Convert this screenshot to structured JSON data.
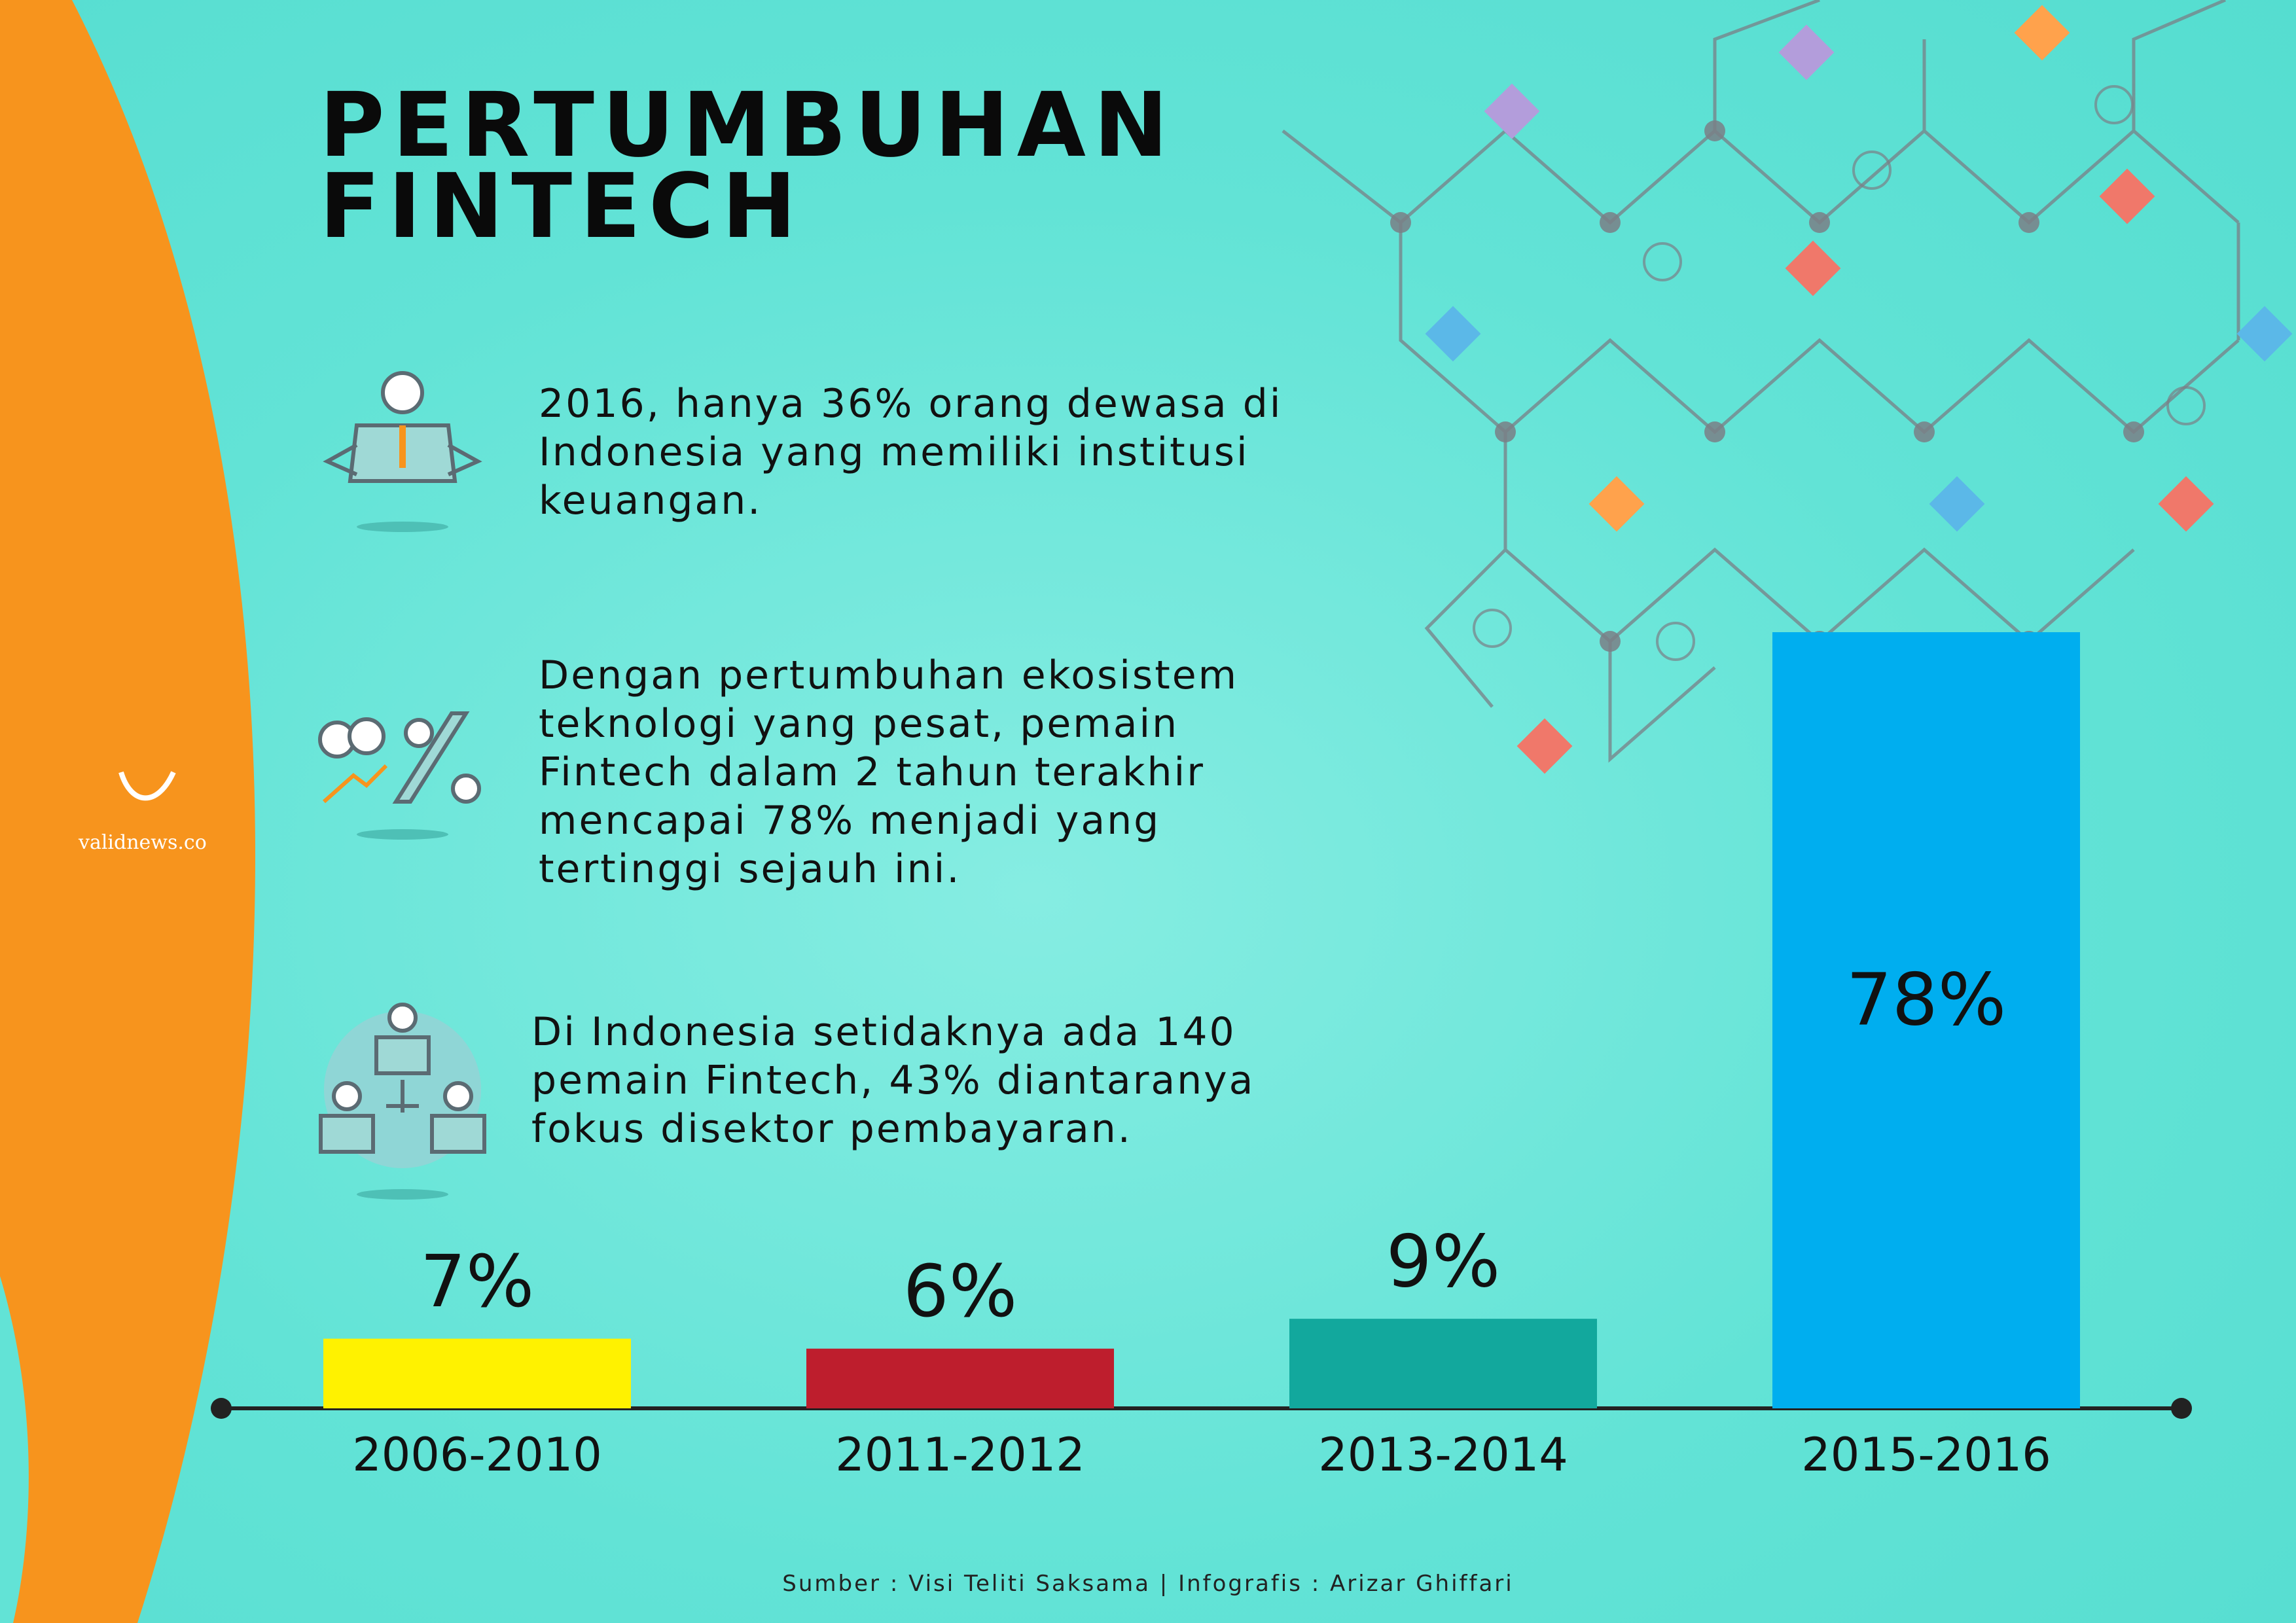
{
  "header": {
    "title": "PERTUMBUHAN FINTECH",
    "logo": "validnews.co"
  },
  "facts": [
    "2016, hanya 36% orang dewasa di Indonesia yang memiliki institusi keuangan.",
    "Dengan pertumbuhan ekosistem teknologi yang pesat, pemain Fintech dalam 2 tahun terakhir mencapai 78% menjadi yang tertinggi sejauh ini.",
    "Di Indonesia setidaknya ada 140 pemain Fintech, 43% diantaranya fokus disektor pembayaran."
  ],
  "chart_data": {
    "type": "bar",
    "categories": [
      "2006-2010",
      "2011-2012",
      "2013-2014",
      "2015-2016"
    ],
    "values": [
      7,
      6,
      9,
      78
    ],
    "value_labels": [
      "7%",
      "6%",
      "9%",
      "78%"
    ],
    "colors": [
      "#fff200",
      "#be1e2d",
      "#12a89d",
      "#00aeef"
    ]
  },
  "footer": {
    "source": "Sumber : Visi Teliti Saksama | Infografis : Arizar Ghiffari"
  }
}
